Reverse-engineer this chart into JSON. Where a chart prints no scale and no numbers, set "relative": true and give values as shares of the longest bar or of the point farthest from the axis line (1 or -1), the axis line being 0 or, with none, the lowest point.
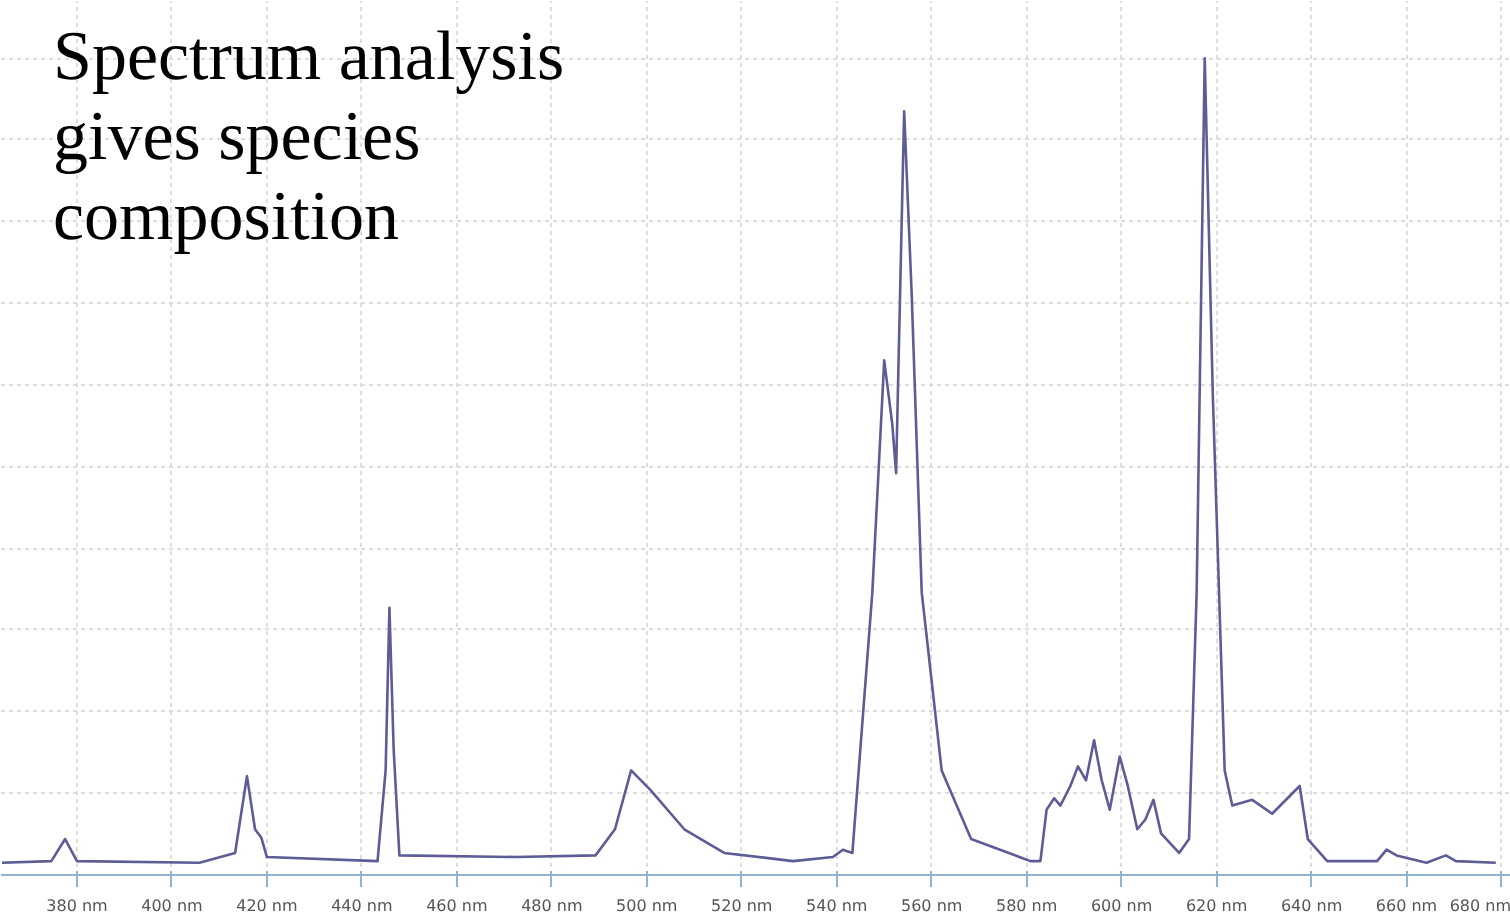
{
  "chart_data": {
    "type": "line",
    "title": "Spectrum analysis gives species composition",
    "relative": true,
    "grid": true,
    "xlim": [
      364,
      682
    ],
    "xticks": [
      {
        "value": 380,
        "label": "380 nm"
      },
      {
        "value": 400,
        "label": "400 nm"
      },
      {
        "value": 420,
        "label": "420 nm"
      },
      {
        "value": 440,
        "label": "440 nm"
      },
      {
        "value": 460,
        "label": "460 nm"
      },
      {
        "value": 480,
        "label": "480 nm"
      },
      {
        "value": 500,
        "label": "500 nm"
      },
      {
        "value": 520,
        "label": "520 nm"
      },
      {
        "value": 540,
        "label": "540 nm"
      },
      {
        "value": 560,
        "label": "560 nm"
      },
      {
        "value": 580,
        "label": "580 nm"
      },
      {
        "value": 600,
        "label": "600 nm"
      },
      {
        "value": 620,
        "label": "620 nm"
      },
      {
        "value": 640,
        "label": "640 nm"
      },
      {
        "value": 660,
        "label": "660 nm"
      },
      {
        "value": 680,
        "label": "680 nm"
      }
    ],
    "series": [
      {
        "color": "#5c5c96",
        "x": [
          364.2,
          374.6,
          377.5,
          380,
          405.8,
          413.3,
          415.8,
          417.5,
          418.8,
          420,
          443.3,
          445,
          445.8,
          446.7,
          447.9,
          472.5,
          489.2,
          493.3,
          496.7,
          500.8,
          507.9,
          516.3,
          530.8,
          539.2,
          541.3,
          543.3,
          547.5,
          550,
          551.7,
          552.5,
          554.2,
          555.8,
          557.9,
          562.1,
          568.3,
          580.8,
          582.9,
          584.2,
          585.8,
          587.1,
          589.2,
          590.8,
          592.5,
          594.2,
          595.8,
          597.5,
          599.6,
          601.3,
          603.3,
          605,
          606.7,
          608.3,
          612.1,
          614.2,
          615.8,
          617.5,
          619.2,
          621.7,
          623.3,
          627.5,
          631.7,
          637.5,
          639.2,
          643.3,
          653.8,
          655.8,
          657.9,
          664.2,
          668.3,
          670.4,
          678.8
        ],
        "values": [
          0.015,
          0.017,
          0.044,
          0.017,
          0.015,
          0.027,
          0.121,
          0.056,
          0.046,
          0.022,
          0.017,
          0.128,
          0.327,
          0.153,
          0.024,
          0.022,
          0.024,
          0.056,
          0.128,
          0.104,
          0.056,
          0.027,
          0.017,
          0.022,
          0.031,
          0.027,
          0.346,
          0.63,
          0.552,
          0.492,
          0.935,
          0.709,
          0.346,
          0.128,
          0.044,
          0.017,
          0.017,
          0.08,
          0.094,
          0.085,
          0.109,
          0.133,
          0.116,
          0.165,
          0.116,
          0.08,
          0.145,
          0.109,
          0.056,
          0.068,
          0.092,
          0.051,
          0.027,
          0.044,
          0.346,
          1,
          0.588,
          0.128,
          0.085,
          0.092,
          0.075,
          0.109,
          0.044,
          0.017,
          0.017,
          0.031,
          0.024,
          0.015,
          0.024,
          0.017,
          0.015
        ]
      }
    ]
  }
}
